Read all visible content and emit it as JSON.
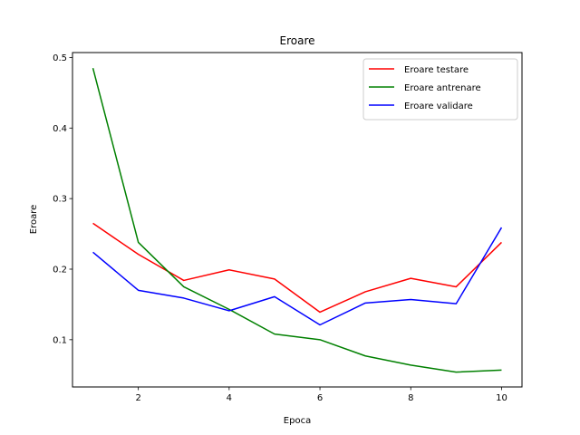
{
  "chart_data": {
    "type": "line",
    "title": "Eroare",
    "xlabel": "Epoca",
    "ylabel": "Eroare",
    "x": [
      1,
      2,
      3,
      4,
      5,
      6,
      7,
      8,
      9,
      10
    ],
    "xlim": [
      0.55,
      10.45
    ],
    "ylim": [
      0.033,
      0.507
    ],
    "xticks": [
      2,
      4,
      6,
      8,
      10
    ],
    "yticks": [
      0.1,
      0.2,
      0.3,
      0.4,
      0.5
    ],
    "xtick_labels": [
      "2",
      "4",
      "6",
      "8",
      "10"
    ],
    "ytick_labels": [
      "0.1",
      "0.2",
      "0.3",
      "0.4",
      "0.5"
    ],
    "grid": false,
    "legend_position": "top-right",
    "series": [
      {
        "name": "Eroare testare",
        "color": "#ff0000",
        "values": [
          0.265,
          0.221,
          0.184,
          0.199,
          0.186,
          0.139,
          0.168,
          0.187,
          0.175,
          0.238
        ]
      },
      {
        "name": "Eroare antrenare",
        "color": "#008000",
        "values": [
          0.485,
          0.238,
          0.175,
          0.143,
          0.108,
          0.1,
          0.077,
          0.064,
          0.054,
          0.057
        ]
      },
      {
        "name": "Eroare validare",
        "color": "#0000ff",
        "values": [
          0.224,
          0.17,
          0.159,
          0.141,
          0.161,
          0.121,
          0.152,
          0.157,
          0.151,
          0.259
        ]
      }
    ]
  }
}
